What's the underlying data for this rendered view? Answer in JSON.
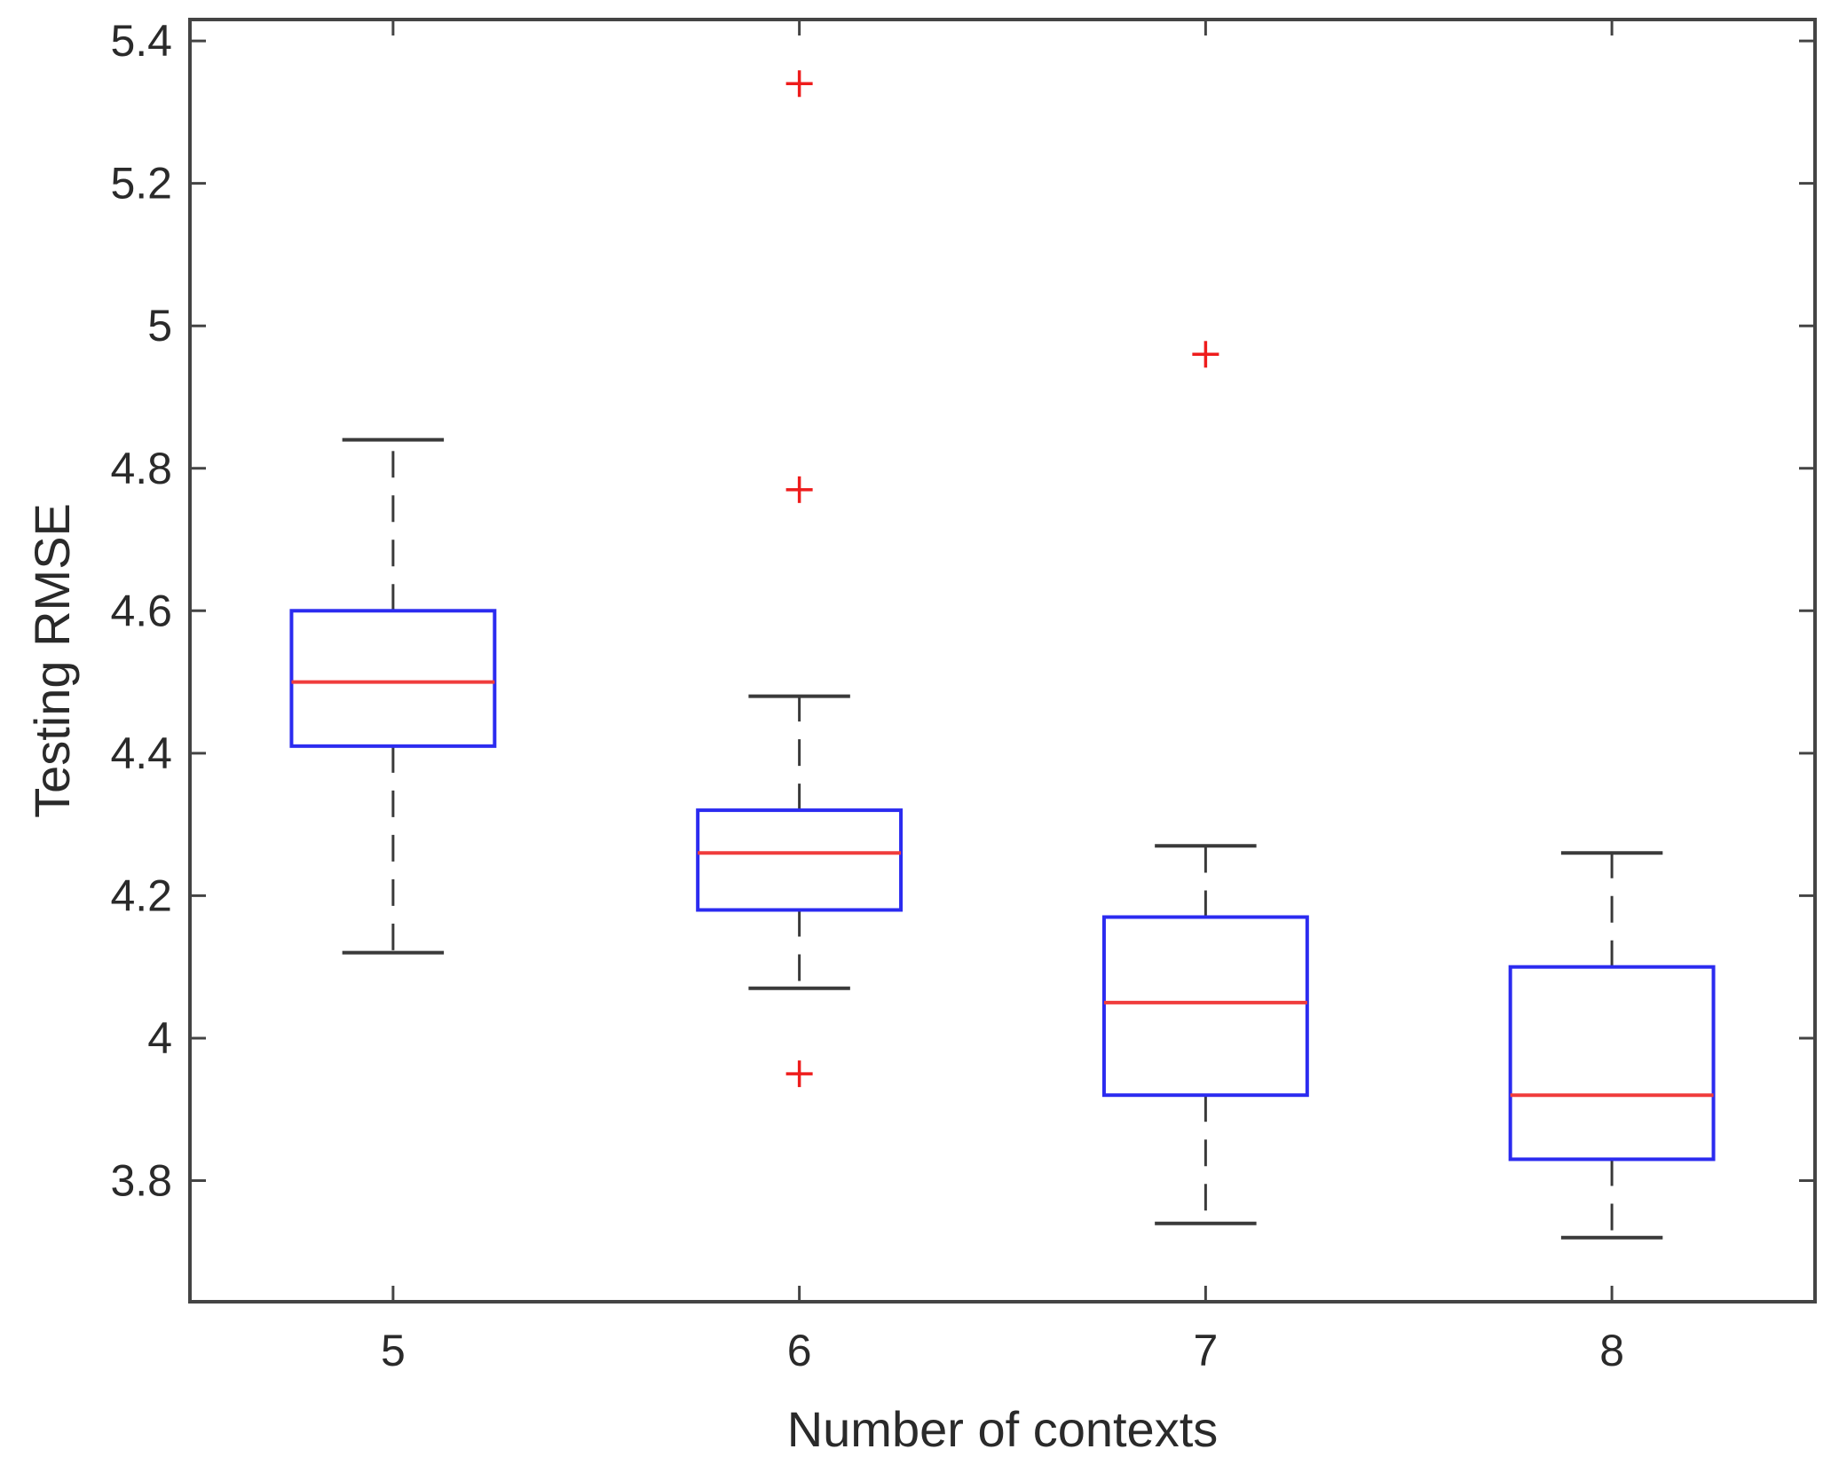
{
  "chart_data": {
    "type": "box",
    "title": "",
    "xlabel": "Number of contexts",
    "ylabel": "Testing RMSE",
    "ylim": [
      3.63,
      5.43
    ],
    "yticks": [
      3.8,
      4,
      4.2,
      4.4,
      4.6,
      4.8,
      5,
      5.2,
      5.4
    ],
    "ytick_labels": [
      "3.8",
      "4",
      "4.2",
      "4.4",
      "4.6",
      "4.8",
      "5",
      "5.2",
      "5.4"
    ],
    "categories": [
      "5",
      "6",
      "7",
      "8"
    ],
    "boxes": [
      {
        "category": "5",
        "whisker_low": 4.12,
        "q1": 4.41,
        "median": 4.5,
        "q3": 4.6,
        "whisker_high": 4.84,
        "outliers": []
      },
      {
        "category": "6",
        "whisker_low": 4.07,
        "q1": 4.18,
        "median": 4.26,
        "q3": 4.32,
        "whisker_high": 4.48,
        "outliers": [
          5.34,
          4.77,
          3.95
        ]
      },
      {
        "category": "7",
        "whisker_low": 3.74,
        "q1": 3.92,
        "median": 4.05,
        "q3": 4.17,
        "whisker_high": 4.27,
        "outliers": [
          4.96
        ]
      },
      {
        "category": "8",
        "whisker_low": 3.72,
        "q1": 3.83,
        "median": 3.92,
        "q3": 4.1,
        "whisker_high": 4.26,
        "outliers": []
      }
    ],
    "grid": false,
    "colors": {
      "box": "#2b2bf0",
      "median": "#f03c3c",
      "whisker": "#3a3a3a",
      "outlier": "#ee1c1c",
      "axis": "#444444"
    }
  }
}
